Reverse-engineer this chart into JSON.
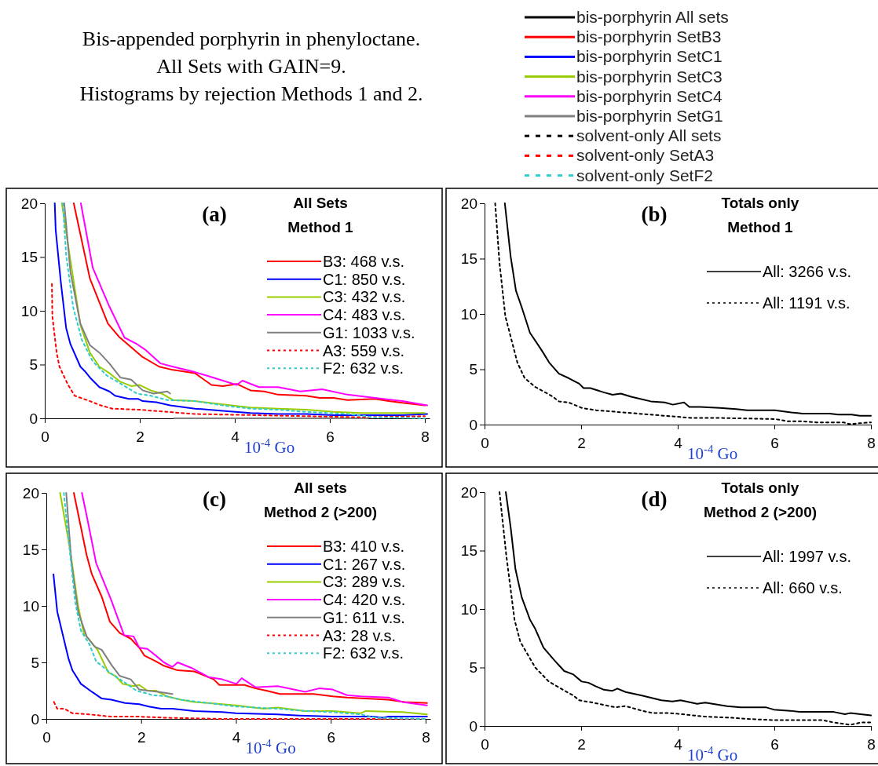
{
  "chart_data": [
    {
      "type": "other",
      "title": "Bis-appended porphyrin in phenyloctane.",
      "subtitle": "All Sets with GAIN=9.",
      "annotations": [
        "Histograms by rejection Methods 1 and 2."
      ],
      "legend": "right",
      "series": [
        {
          "name": "bis-porphyrin All sets",
          "color": "#000000",
          "line_style": "solid"
        },
        {
          "name": "bis-porphyrin SetB3",
          "color": "#ff0000",
          "line_style": "solid"
        },
        {
          "name": "bis-porphyrin SetC1",
          "color": "#0000ff",
          "line_style": "solid"
        },
        {
          "name": "bis-porphyrin SetC3",
          "color": "#99cc00",
          "line_style": "solid"
        },
        {
          "name": "bis-porphyrin SetC4",
          "color": "#ff00ff",
          "line_style": "solid"
        },
        {
          "name": "bis-porphyrin SetG1",
          "color": "#808080",
          "line_style": "solid"
        },
        {
          "name": "solvent-only All sets",
          "color": "#000000",
          "line_style": "dotted"
        },
        {
          "name": "solvent-only SetA3",
          "color": "#ff0000",
          "line_style": "dotted"
        },
        {
          "name": "solvent-only SetF2",
          "color": "#33cccc",
          "line_style": "dotted"
        }
      ]
    },
    {
      "type": "line",
      "title": "(a)",
      "annotations": [
        "All Sets",
        "Method 1"
      ],
      "xlabel": "10$^{-4}$ Go",
      "xlim": [
        0,
        8.1
      ],
      "xticks": [
        0,
        2,
        4,
        6,
        8
      ],
      "ylim": [
        0,
        20
      ],
      "yticks": [
        0,
        5,
        10,
        15,
        20
      ],
      "legend": "right",
      "series": [
        {
          "name": "B3: 468 v.s.",
          "color": "#ff0000",
          "line_style": "solid",
          "x": [
            0.61,
            0.95,
            1.33,
            1.56,
            1.82,
            2.06,
            2.41,
            2.7,
            3.16,
            3.51,
            3.75,
            4.04,
            4.33,
            4.62,
            4.91,
            5.5,
            5.79,
            6.08,
            6.37,
            6.95,
            7.24,
            8.0
          ],
          "values": [
            20,
            13,
            8.8,
            7.6,
            6.6,
            5.7,
            4.8,
            4.5,
            4.2,
            3.1,
            3.0,
            3.2,
            2.6,
            2.5,
            2.2,
            2.1,
            1.9,
            1.9,
            1.7,
            1.8,
            1.6,
            1.2
          ]
        },
        {
          "name": "C1: 850 v.s.",
          "color": "#0000ff",
          "line_style": "solid",
          "x": [
            0.21,
            0.23,
            0.34,
            0.45,
            0.54,
            0.75,
            0.84,
            0.95,
            1.15,
            1.36,
            1.48,
            1.77,
            1.97,
            2.06,
            2.35,
            2.64,
            3.16,
            3.75,
            4.33,
            4.91,
            5.5,
            6.08,
            6.95,
            7.53,
            8.05
          ],
          "values": [
            20,
            17.5,
            12.6,
            8.4,
            6.9,
            4.8,
            4.4,
            3.8,
            2.9,
            2.5,
            2.1,
            1.8,
            1.8,
            1.6,
            1.5,
            1.2,
            0.9,
            0.7,
            0.5,
            0.4,
            0.4,
            0.3,
            0.3,
            0.3,
            0.4
          ]
        },
        {
          "name": "C3: 432 v.s.",
          "color": "#99cc00",
          "line_style": "solid",
          "x": [
            0.36,
            0.54,
            0.75,
            0.95,
            1.15,
            1.36,
            1.59,
            1.82,
            2.0,
            2.23,
            2.46,
            2.7,
            3.16,
            3.75,
            4.33,
            4.91,
            5.5,
            6.08,
            6.66,
            7.24,
            8.0
          ],
          "values": [
            20,
            14.7,
            8.7,
            6.1,
            4.8,
            4.2,
            3.4,
            3.0,
            3.1,
            2.6,
            2.3,
            1.7,
            1.6,
            1.3,
            1.0,
            0.9,
            0.8,
            0.6,
            0.5,
            0.5,
            0.5
          ]
        },
        {
          "name": "C4: 483 v.s.",
          "color": "#ff00ff",
          "line_style": "solid",
          "x": [
            0.76,
            1.01,
            1.36,
            1.59,
            1.68,
            1.94,
            2.11,
            2.44,
            2.7,
            3.16,
            3.46,
            3.75,
            4.04,
            4.16,
            4.51,
            4.91,
            5.38,
            5.84,
            6.37,
            6.95,
            7.53,
            8.05
          ],
          "values": [
            20,
            14,
            10.4,
            8.3,
            7.5,
            6.9,
            6.4,
            5.1,
            4.8,
            4.3,
            3.9,
            3.5,
            3.1,
            3.5,
            2.9,
            2.9,
            2.5,
            2.7,
            2.2,
            1.9,
            1.6,
            1.2
          ]
        },
        {
          "name": "G1: 1033 v.s.",
          "color": "#808080",
          "line_style": "solid",
          "x": [
            0.41,
            0.54,
            0.75,
            0.95,
            1.15,
            1.36,
            1.59,
            1.82,
            2.06,
            2.29,
            2.58,
            2.64,
            2.67,
            2.72,
            6.8
          ],
          "values": [
            20,
            13.6,
            8.8,
            6.8,
            6.1,
            5.1,
            3.8,
            3.6,
            2.6,
            2.3,
            2.5,
            2.3,
            null,
            0,
            0
          ]
        },
        {
          "name": "A3: 559 v.s.",
          "color": "#ff0000",
          "line_style": "dotted",
          "x": [
            0.15,
            0.16,
            0.25,
            0.31,
            0.48,
            0.63,
            0.95,
            1.18,
            1.42,
            2.0,
            2.58,
            3.16,
            4.33,
            5.5,
            6.66,
            8.0
          ],
          "values": [
            12.5,
            9.5,
            6.1,
            4.8,
            3.2,
            2.1,
            1.6,
            1.2,
            0.9,
            0.8,
            0.6,
            0.4,
            0.3,
            0.2,
            0.1,
            0.2
          ]
        },
        {
          "name": "F2: 632 v.s.",
          "color": "#33cccc",
          "line_style": "dotted",
          "x": [
            0.38,
            0.45,
            0.6,
            0.78,
            1.01,
            1.3,
            1.53,
            1.94,
            2.23,
            2.58,
            3.16,
            3.75,
            4.33,
            4.91,
            5.5,
            6.37,
            6.95,
            8.0
          ],
          "values": [
            20,
            15.2,
            10.3,
            7.3,
            5.3,
            4.0,
            3.4,
            2.3,
            2.1,
            1.7,
            1.6,
            1.2,
            0.9,
            0.8,
            0.6,
            0.4,
            0.1,
            0
          ]
        }
      ]
    },
    {
      "type": "line",
      "title": "(b)",
      "annotations": [
        "Totals only",
        "Method 1"
      ],
      "xlabel": "10$^{-4}$ Go",
      "xlim": [
        0,
        8
      ],
      "xticks": [
        0,
        2,
        4,
        6,
        8
      ],
      "ylim": [
        0,
        20
      ],
      "yticks": [
        0,
        5,
        10,
        15,
        20
      ],
      "legend": "top right",
      "series": [
        {
          "name": "All: 3266 v.s.",
          "color": "#000000",
          "line_style": "solid",
          "x": [
            0.42,
            0.54,
            0.65,
            0.77,
            0.94,
            1.17,
            1.34,
            1.54,
            1.74,
            1.96,
            2.05,
            2.19,
            2.48,
            2.65,
            2.82,
            3.05,
            3.44,
            3.73,
            3.9,
            4.13,
            4.24,
            4.47,
            4.87,
            5.21,
            5.44,
            6.01,
            6.35,
            6.58,
            7.15,
            7.32,
            7.6,
            7.77,
            8.0
          ],
          "values": [
            20,
            15.2,
            12.1,
            10.6,
            8.3,
            6.8,
            5.6,
            4.6,
            4.2,
            3.7,
            3.3,
            3.3,
            2.9,
            2.7,
            2.8,
            2.5,
            2.1,
            2.0,
            1.8,
            2.0,
            1.6,
            1.6,
            1.5,
            1.4,
            1.3,
            1.3,
            1.1,
            1.0,
            1.0,
            0.9,
            0.9,
            0.8,
            0.8
          ]
        },
        {
          "name": "All: 1191 v.s.",
          "color": "#000000",
          "line_style": "dotted",
          "x": [
            0.22,
            0.31,
            0.43,
            0.68,
            0.83,
            1.05,
            1.22,
            1.42,
            1.54,
            1.74,
            2.02,
            2.31,
            2.59,
            3.16,
            3.73,
            4.3,
            4.87,
            6.01,
            6.29,
            6.58,
            6.87,
            7.44,
            7.55,
            8.0
          ],
          "values": [
            20,
            14.6,
            9.8,
            5.6,
            4.2,
            3.4,
            3.0,
            2.5,
            2.1,
            2.0,
            1.5,
            1.3,
            1.2,
            1.0,
            0.8,
            0.6,
            0.6,
            0.5,
            0.3,
            0.3,
            0.2,
            0.2,
            0.05,
            0.2
          ]
        }
      ]
    },
    {
      "type": "line",
      "title": "(c)",
      "annotations": [
        "All sets",
        "Method 2 (>200)"
      ],
      "xlabel": "10$^{-4}$ Go",
      "xlim": [
        0,
        8.1
      ],
      "xticks": [
        0,
        2,
        4,
        6,
        8
      ],
      "ylim": [
        0,
        20
      ],
      "yticks": [
        0,
        5,
        10,
        15,
        20
      ],
      "legend": "right",
      "series": [
        {
          "name": "B3: 410 v.s.",
          "color": "#ff0000",
          "line_style": "solid",
          "x": [
            0.58,
            0.85,
            0.96,
            1.17,
            1.34,
            1.55,
            1.78,
            1.96,
            2.07,
            2.31,
            2.48,
            2.77,
            3.12,
            3.53,
            3.65,
            3.88,
            4.18,
            4.41,
            4.64,
            4.93,
            5.23,
            5.64,
            6.04,
            6.34,
            7.21,
            7.56,
            8.03
          ],
          "values": [
            20,
            14.5,
            12.8,
            10.8,
            8.6,
            7.6,
            7.1,
            6.3,
            5.6,
            5.1,
            4.7,
            4.3,
            4.2,
            3.5,
            3.0,
            3.0,
            3.0,
            2.7,
            2.5,
            2.2,
            2.2,
            2.2,
            2.0,
            1.9,
            1.7,
            1.5,
            1.4
          ]
        },
        {
          "name": "C1: 267 v.s.",
          "color": "#0000ff",
          "line_style": "solid",
          "x": [
            0.15,
            0.23,
            0.47,
            0.55,
            0.73,
            0.96,
            1.17,
            1.37,
            1.66,
            1.96,
            2.16,
            2.42,
            2.66,
            3.12,
            3.71,
            4.0,
            4.88,
            5.34,
            6.04,
            6.92,
            7.09,
            7.21,
            8.03
          ],
          "values": [
            12.8,
            9.5,
            5.3,
            4.3,
            3.1,
            2.4,
            1.8,
            1.7,
            1.4,
            1.3,
            1.1,
            0.9,
            0.9,
            0.7,
            0.6,
            0.5,
            0.4,
            0.3,
            0.2,
            0.2,
            0.1,
            0.2,
            0.2
          ]
        },
        {
          "name": "C3: 289 v.s.",
          "color": "#99cc00",
          "line_style": "solid",
          "x": [
            0.29,
            0.5,
            0.67,
            0.79,
            1.08,
            1.31,
            1.46,
            1.61,
            1.84,
            1.96,
            2.13,
            2.31,
            2.54,
            2.83,
            3.12,
            3.42,
            4.0,
            4.58,
            4.88,
            5.46,
            6.04,
            6.63,
            6.74,
            7.51,
            8.03
          ],
          "values": [
            20,
            15,
            10,
            7.6,
            6.1,
            4.1,
            3.8,
            3.1,
            2.9,
            3.0,
            2.5,
            2.5,
            2.0,
            1.7,
            1.5,
            1.4,
            1.2,
            0.9,
            1.0,
            0.7,
            0.7,
            0.5,
            0.7,
            0.6,
            0.4
          ]
        },
        {
          "name": "C4: 420 v.s.",
          "color": "#ff00ff",
          "line_style": "solid",
          "x": [
            0.75,
            0.85,
            1.05,
            1.37,
            1.64,
            1.84,
            1.96,
            2.13,
            2.31,
            2.48,
            2.66,
            2.77,
            3.07,
            3.42,
            3.71,
            4.01,
            4.12,
            4.41,
            4.88,
            5.46,
            5.75,
            6.04,
            6.34,
            6.63,
            7.21,
            7.51,
            8.03
          ],
          "values": [
            20,
            18,
            13.8,
            10.5,
            7.4,
            7.3,
            6.3,
            6.2,
            5.6,
            5.0,
            4.6,
            5.0,
            4.5,
            3.7,
            3.5,
            3.1,
            3.6,
            2.8,
            2.9,
            2.4,
            2.7,
            2.6,
            2.1,
            2.0,
            1.9,
            1.5,
            1.2
          ]
        },
        {
          "name": "G1: 611 v.s.",
          "color": "#808080",
          "line_style": "solid",
          "x": [
            0.42,
            0.53,
            0.67,
            0.85,
            1.02,
            1.17,
            1.37,
            1.55,
            1.78,
            1.96,
            2.13,
            2.36,
            2.66
          ],
          "values": [
            20,
            13.8,
            9.5,
            7.3,
            6.4,
            6.1,
            4.8,
            3.8,
            3.5,
            2.6,
            2.5,
            2.4,
            2.2
          ]
        },
        {
          "name": "A3: 28 v.s.",
          "color": "#ff0000",
          "line_style": "dotted",
          "x": [
            0.16,
            0.23,
            0.38,
            0.55,
            0.91,
            1.37,
            1.96,
            2.54,
            3.71,
            5.46,
            8.03
          ],
          "values": [
            1.5,
            0.9,
            0.9,
            0.5,
            0.4,
            0.2,
            0.2,
            0.1,
            0,
            0,
            0
          ]
        },
        {
          "name": "F2: 632 v.s.",
          "color": "#33cccc",
          "line_style": "dotted",
          "x": [
            0.37,
            0.44,
            0.61,
            0.73,
            0.91,
            1.05,
            1.37,
            1.66,
            1.9,
            2.25,
            2.54,
            2.83,
            3.42,
            4.0,
            4.88,
            5.46,
            6.04,
            6.63,
            6.97,
            8.03
          ],
          "values": [
            20,
            17,
            10.3,
            7.8,
            6.6,
            5.1,
            4.0,
            3.2,
            2.5,
            2.1,
            2.0,
            1.7,
            1.4,
            1.1,
            0.9,
            0.7,
            0.6,
            0.4,
            0.1,
            0
          ]
        }
      ]
    },
    {
      "type": "line",
      "title": "(d)",
      "annotations": [
        "Totals only",
        "Method 2 (>200)"
      ],
      "xlabel": "10$^{-4}$ Go",
      "xlim": [
        0,
        8
      ],
      "xticks": [
        0,
        2,
        4,
        6,
        8
      ],
      "ylim": [
        0,
        20
      ],
      "yticks": [
        0,
        5,
        10,
        15,
        20
      ],
      "legend": "top right",
      "series": [
        {
          "name": "All: 1997 v.s.",
          "color": "#000000",
          "line_style": "solid",
          "x": [
            0.44,
            0.54,
            0.64,
            0.77,
            0.94,
            1.05,
            1.22,
            1.45,
            1.65,
            1.84,
            2.01,
            2.15,
            2.3,
            2.47,
            2.64,
            2.75,
            2.92,
            3.26,
            3.66,
            3.89,
            4.06,
            4.4,
            4.57,
            5.02,
            5.3,
            5.82,
            5.99,
            6.33,
            6.55,
            7.23,
            7.46,
            7.57,
            8.0
          ],
          "values": [
            20,
            17,
            13.4,
            11,
            9.1,
            8.3,
            6.7,
            5.6,
            4.7,
            4.4,
            3.8,
            3.7,
            3.4,
            3.1,
            3.0,
            3.2,
            2.9,
            2.6,
            2.2,
            2.1,
            2.2,
            1.9,
            2.0,
            1.7,
            1.6,
            1.6,
            1.4,
            1.3,
            1.2,
            1.2,
            1.0,
            1.1,
            0.9
          ]
        },
        {
          "name": "All: 660 v.s.",
          "color": "#000000",
          "line_style": "dotted",
          "x": [
            0.31,
            0.45,
            0.62,
            0.74,
            1.05,
            1.33,
            1.62,
            1.84,
            1.96,
            2.24,
            2.47,
            2.7,
            2.92,
            3.26,
            3.49,
            3.83,
            4.11,
            4.57,
            5.13,
            5.47,
            5.99,
            6.28,
            7.0,
            7.23,
            7.57,
            7.8,
            8.0
          ],
          "values": [
            20,
            14.6,
            9.1,
            7.2,
            5.0,
            3.8,
            3.1,
            2.6,
            2.2,
            2.0,
            1.8,
            1.6,
            1.7,
            1.3,
            1.1,
            1.1,
            1.0,
            0.8,
            0.7,
            0.6,
            0.5,
            0.5,
            0.5,
            0.3,
            0.1,
            0.3,
            0.3
          ]
        }
      ]
    }
  ]
}
